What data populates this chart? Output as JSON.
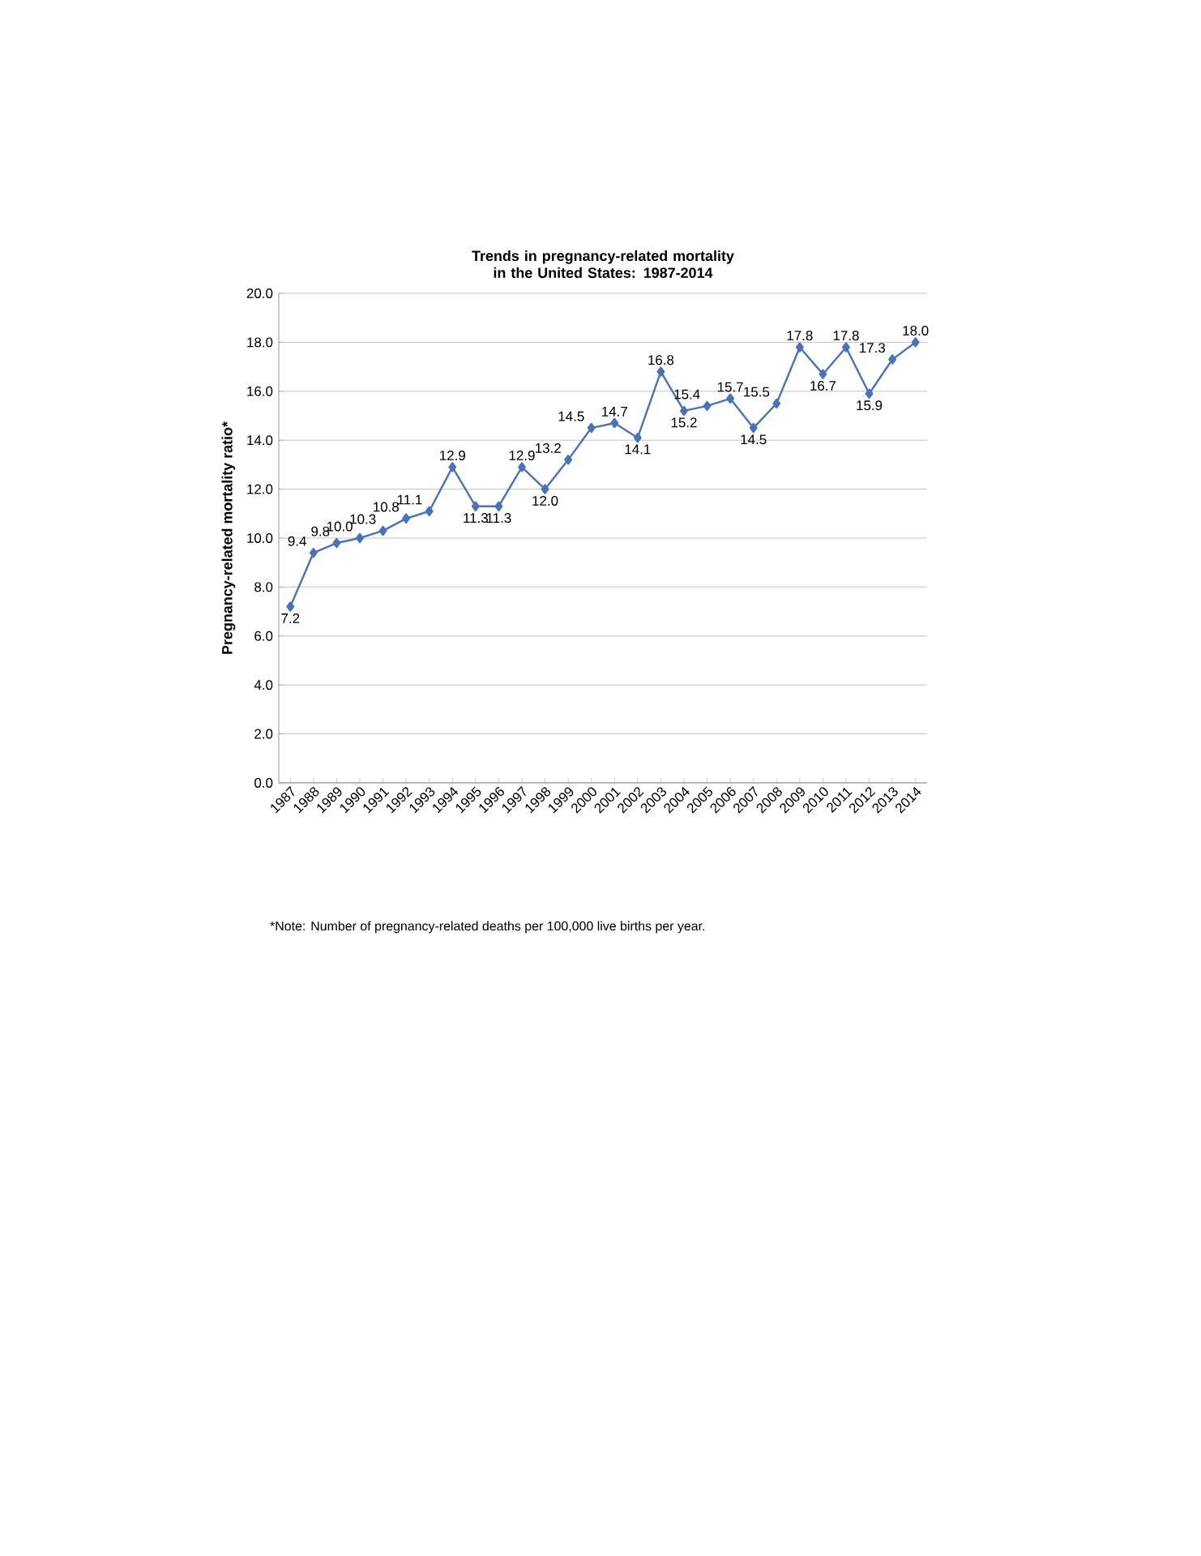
{
  "chart_data": {
    "type": "line",
    "title": "Trends in pregnancy-related mortality in the United States: 1987-2014",
    "ylabel": "Pregnancy-related mortality ratio*",
    "categories": [
      "1987",
      "1988",
      "1989",
      "1990",
      "1991",
      "1992",
      "1993",
      "1994",
      "1995",
      "1996",
      "1997",
      "1998",
      "1999",
      "2000",
      "2001",
      "2002",
      "2003",
      "2004",
      "2005",
      "2006",
      "2007",
      "2008",
      "2009",
      "2010",
      "2011",
      "2012",
      "2013",
      "2014"
    ],
    "values": [
      7.2,
      9.4,
      9.8,
      10.0,
      10.3,
      10.8,
      11.1,
      12.9,
      11.3,
      11.3,
      12.9,
      12.0,
      13.2,
      14.5,
      14.7,
      14.1,
      16.8,
      15.2,
      15.4,
      15.7,
      14.5,
      15.5,
      17.8,
      16.7,
      17.8,
      15.9,
      17.3,
      18.0
    ],
    "value_labels": [
      "7.2",
      "9.4",
      "9.8",
      "10.0",
      "10.3",
      "10.8",
      "11.1",
      "12.9",
      "11.3",
      "11.3",
      "12.9",
      "12.0",
      "13.2",
      "14.5",
      "14.7",
      "14.1",
      "16.8",
      "15.2",
      "15.4",
      "15.7",
      "14.5",
      "15.5",
      "17.8",
      "16.7",
      "17.8",
      "15.9",
      "17.3",
      "18.0"
    ],
    "color": "#4a72b8",
    "marker": "diamond",
    "line_style": "solid",
    "grid": "y",
    "ylim": [
      0,
      20
    ],
    "yticks": [
      {
        "value": 0,
        "label": "0.0"
      },
      {
        "value": 2,
        "label": "2.0"
      },
      {
        "value": 4,
        "label": "4.0"
      },
      {
        "value": 6,
        "label": "6.0"
      },
      {
        "value": 8,
        "label": "8.0"
      },
      {
        "value": 10,
        "label": "10.0"
      },
      {
        "value": 12,
        "label": "12.0"
      },
      {
        "value": 14,
        "label": "14.0"
      },
      {
        "value": 16,
        "label": "16.0"
      },
      {
        "value": 18,
        "label": "18.0"
      },
      {
        "value": 20,
        "label": "20.0"
      }
    ],
    "annotations": [
      "*Note: Number of pregnancy-related deaths per 100,000 live births per year."
    ]
  }
}
